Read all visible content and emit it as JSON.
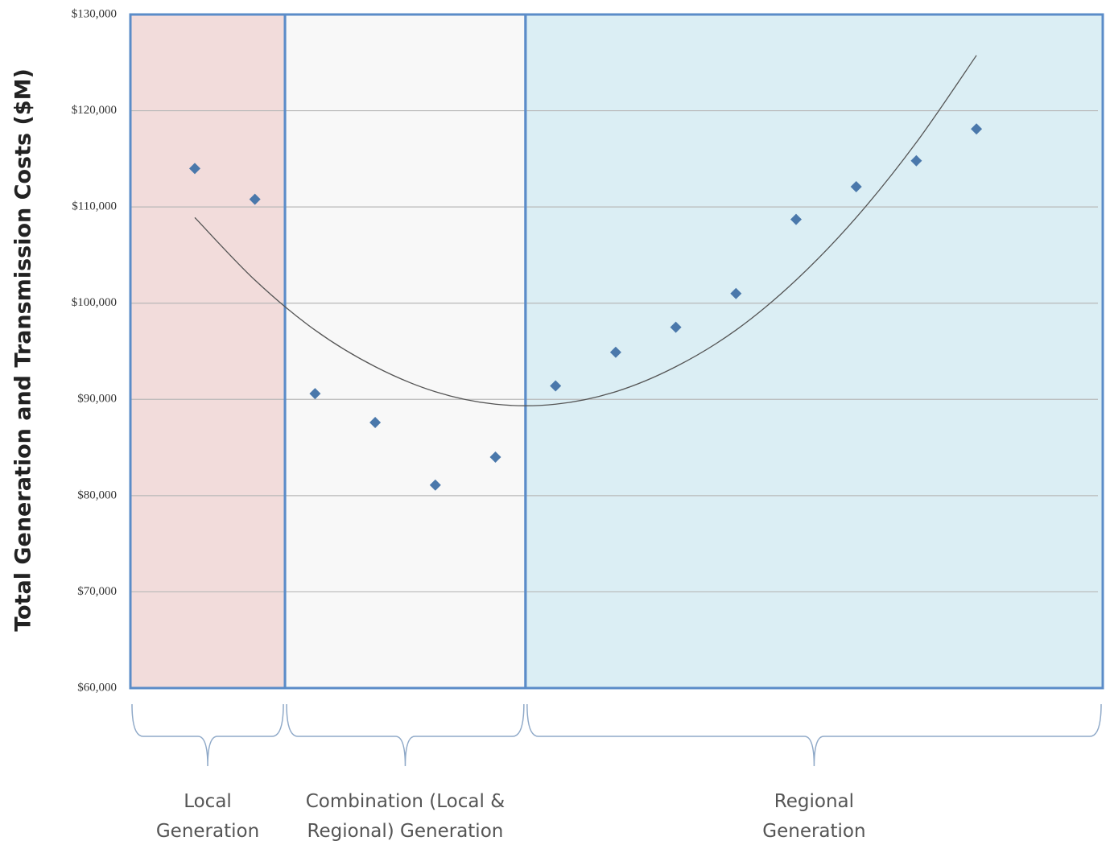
{
  "chart_data": {
    "type": "scatter",
    "y_label": "Total Generation and Transmission Costs ($M)",
    "ylim": [
      60000,
      130000
    ],
    "yticks": [
      {
        "value": 60000,
        "label": "$60,000"
      },
      {
        "value": 70000,
        "label": "$70,000"
      },
      {
        "value": 80000,
        "label": "$80,000"
      },
      {
        "value": 90000,
        "label": "$90,000"
      },
      {
        "value": 100000,
        "label": "$100,000"
      },
      {
        "value": 110000,
        "label": "$110,000"
      },
      {
        "value": 120000,
        "label": "$120,000"
      },
      {
        "value": 130000,
        "label": "$130,000"
      }
    ],
    "grid": true,
    "marker_color": "#4a78ab",
    "regions": [
      {
        "label": [
          "Local",
          "Generation"
        ],
        "color": "#f2dcdb",
        "values": [
          114000,
          110800
        ]
      },
      {
        "label": [
          "Combination (Local &",
          "Regional) Generation"
        ],
        "color": "#f8f8f8",
        "values": [
          90600,
          87600,
          81100,
          84000
        ]
      },
      {
        "label": [
          "Regional",
          "Generation"
        ],
        "color": "#dbeef4",
        "values": [
          91400,
          94900,
          97500,
          101000,
          108700,
          112100,
          114800,
          118100
        ]
      }
    ],
    "trend": {
      "color": "#555555",
      "values": [
        108900,
        102400,
        97200,
        93400,
        90800,
        89500,
        89500,
        90800,
        93400,
        97200,
        102400,
        108900,
        116700,
        125750
      ]
    }
  }
}
